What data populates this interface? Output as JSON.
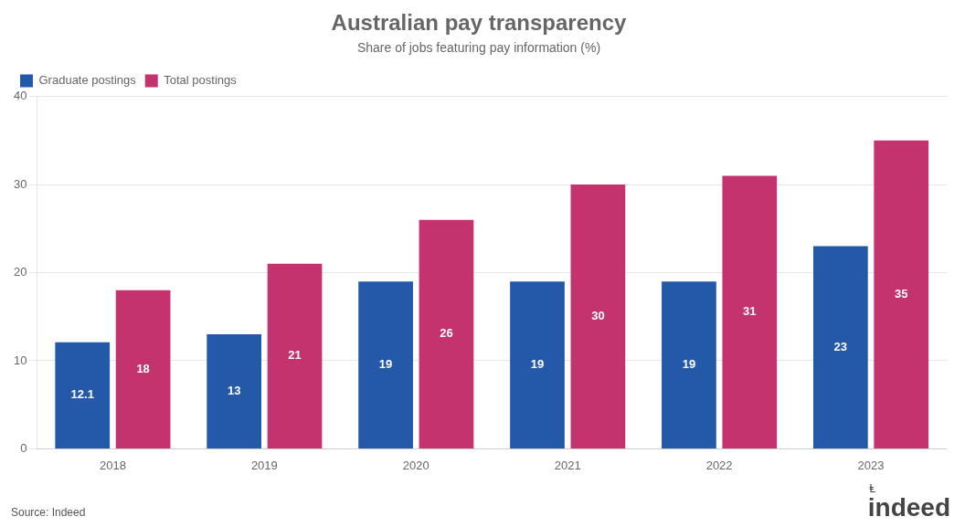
{
  "chart_data": {
    "type": "bar",
    "title": "Australian pay transparency",
    "subtitle": "Share of jobs featuring pay information (%)",
    "categories": [
      "2018",
      "2019",
      "2020",
      "2021",
      "2022",
      "2023"
    ],
    "series": [
      {
        "name": "Graduate postings",
        "color": "#2458a8",
        "values": [
          12.1,
          13,
          19,
          19,
          19,
          23
        ]
      },
      {
        "name": "Total postings",
        "color": "#c4336e",
        "values": [
          18,
          21,
          26,
          30,
          31,
          35
        ]
      }
    ],
    "ylim": [
      0,
      40
    ],
    "yticks": [
      0,
      10,
      20,
      30,
      40
    ],
    "grid": true,
    "legend": "upper left",
    "data_labels": true,
    "annotations": [
      "Source: Indeed",
      "indeed",
      "Ⱡ"
    ]
  }
}
